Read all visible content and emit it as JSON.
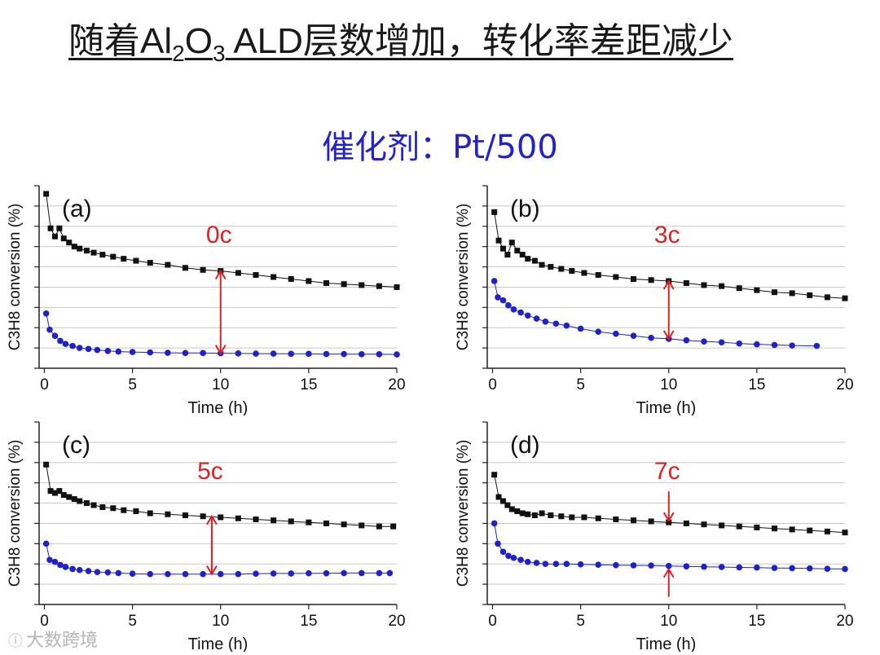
{
  "title": {
    "prefix": "随着Al",
    "sub1": "2",
    "mid": "O",
    "sub2": "3",
    "suffix": " ALD层数增加，转化率差距减少"
  },
  "subtitle": "催化剂：Pt/500",
  "watermark": {
    "icon": "ⓘ",
    "text": "大数跨境"
  },
  "colors": {
    "black_series": "#111111",
    "blue_series": "#1f22c8",
    "annotation": "#e02020",
    "grid": "#c8c8c8"
  },
  "chart_data": [
    {
      "type": "scatter",
      "panel_label": "(a)",
      "annotation": "0c",
      "xlabel": "Time (h)",
      "ylabel": "C3H8 conversion (%)",
      "xlim": [
        -0.3,
        20
      ],
      "xticks": [
        0,
        5,
        10,
        15,
        20
      ],
      "ylim": [
        0,
        9
      ],
      "series": [
        {
          "name": "black",
          "color": "#111111",
          "x": [
            0.1,
            0.35,
            0.6,
            0.85,
            1.1,
            1.4,
            1.7,
            2.0,
            2.4,
            2.8,
            3.3,
            3.9,
            4.5,
            5.2,
            6,
            7,
            8,
            9,
            10,
            11,
            12,
            13,
            14,
            15,
            16,
            17,
            18,
            19,
            20
          ],
          "y": [
            8.6,
            6.9,
            6.5,
            6.9,
            6.4,
            6.2,
            6.0,
            5.9,
            5.8,
            5.7,
            5.6,
            5.5,
            5.4,
            5.3,
            5.2,
            5.1,
            4.95,
            4.85,
            4.8,
            4.7,
            4.6,
            4.5,
            4.4,
            4.3,
            4.2,
            4.15,
            4.1,
            4.05,
            4.0
          ]
        },
        {
          "name": "blue",
          "color": "#1f22c8",
          "x": [
            0.1,
            0.3,
            0.6,
            0.9,
            1.2,
            1.6,
            2.0,
            2.5,
            3.0,
            3.6,
            4.2,
            5,
            6,
            7,
            8,
            9,
            10,
            11,
            12,
            13,
            14,
            15,
            16,
            17,
            18,
            19,
            20
          ],
          "y": [
            2.7,
            1.9,
            1.6,
            1.35,
            1.2,
            1.1,
            1.0,
            0.95,
            0.9,
            0.85,
            0.82,
            0.8,
            0.78,
            0.76,
            0.75,
            0.75,
            0.74,
            0.73,
            0.72,
            0.72,
            0.71,
            0.71,
            0.7,
            0.7,
            0.69,
            0.69,
            0.68
          ]
        }
      ],
      "arrow": {
        "x": 10,
        "y_top": 4.8,
        "y_bottom": 0.74,
        "style": "double"
      }
    },
    {
      "type": "scatter",
      "panel_label": "(b)",
      "annotation": "3c",
      "xlabel": "Time (h)",
      "ylabel": "C3H8 conversion (%)",
      "xlim": [
        -0.3,
        20
      ],
      "xticks": [
        0,
        5,
        10,
        15,
        20
      ],
      "ylim": [
        0,
        9
      ],
      "series": [
        {
          "name": "black",
          "color": "#111111",
          "x": [
            0.1,
            0.35,
            0.6,
            0.85,
            1.1,
            1.4,
            1.7,
            2.0,
            2.4,
            2.8,
            3.3,
            3.9,
            4.5,
            5.2,
            6,
            7,
            8,
            9,
            10,
            11,
            12,
            13,
            14,
            15,
            16,
            17,
            18,
            19,
            20
          ],
          "y": [
            7.7,
            6.3,
            5.9,
            5.6,
            6.2,
            5.8,
            5.6,
            5.4,
            5.3,
            5.1,
            5.0,
            4.9,
            4.8,
            4.7,
            4.6,
            4.5,
            4.4,
            4.35,
            4.3,
            4.2,
            4.1,
            4.05,
            3.95,
            3.85,
            3.75,
            3.7,
            3.6,
            3.5,
            3.45
          ]
        },
        {
          "name": "blue",
          "color": "#1f22c8",
          "x": [
            0.1,
            0.3,
            0.6,
            0.9,
            1.2,
            1.6,
            2.0,
            2.5,
            3.0,
            3.6,
            4.2,
            5,
            6,
            7,
            8,
            9,
            10,
            11,
            12,
            13,
            14,
            15,
            16,
            17,
            18.4
          ],
          "y": [
            4.3,
            3.5,
            3.35,
            3.1,
            2.9,
            2.75,
            2.6,
            2.45,
            2.3,
            2.2,
            2.1,
            1.95,
            1.8,
            1.7,
            1.6,
            1.5,
            1.45,
            1.38,
            1.32,
            1.28,
            1.22,
            1.18,
            1.15,
            1.12,
            1.1
          ]
        }
      ],
      "arrow": {
        "x": 10,
        "y_top": 4.3,
        "y_bottom": 1.45,
        "style": "double"
      }
    },
    {
      "type": "scatter",
      "panel_label": "(c)",
      "annotation": "5c",
      "xlabel": "Time (h)",
      "ylabel": "C3H8 conversion (%)",
      "xlim": [
        -0.3,
        20
      ],
      "xticks": [
        0,
        5,
        10,
        15,
        20
      ],
      "ylim": [
        0,
        9
      ],
      "series": [
        {
          "name": "black",
          "color": "#111111",
          "x": [
            0.1,
            0.35,
            0.6,
            0.85,
            1.1,
            1.4,
            1.7,
            2.0,
            2.4,
            2.8,
            3.3,
            3.9,
            4.5,
            5.2,
            6,
            7,
            8,
            9,
            10,
            11,
            12,
            13,
            14,
            15,
            16,
            17,
            18,
            19,
            19.8
          ],
          "y": [
            6.9,
            5.6,
            5.5,
            5.6,
            5.4,
            5.3,
            5.2,
            5.1,
            5.0,
            4.9,
            4.8,
            4.75,
            4.65,
            4.6,
            4.5,
            4.45,
            4.4,
            4.35,
            4.3,
            4.25,
            4.2,
            4.15,
            4.1,
            4.05,
            4.0,
            3.95,
            3.9,
            3.85,
            3.85
          ]
        },
        {
          "name": "blue",
          "color": "#1f22c8",
          "x": [
            0.1,
            0.3,
            0.6,
            0.9,
            1.2,
            1.6,
            2.0,
            2.5,
            3.0,
            3.6,
            4.2,
            5,
            6,
            7,
            8,
            9,
            10,
            11,
            12,
            13,
            14,
            15,
            16,
            17,
            18,
            19,
            19.6
          ],
          "y": [
            3.0,
            2.2,
            2.1,
            1.95,
            1.85,
            1.75,
            1.7,
            1.65,
            1.6,
            1.58,
            1.55,
            1.52,
            1.5,
            1.5,
            1.5,
            1.5,
            1.5,
            1.5,
            1.52,
            1.53,
            1.53,
            1.54,
            1.54,
            1.55,
            1.55,
            1.55,
            1.55
          ]
        }
      ],
      "arrow": {
        "x": 9.5,
        "y_top": 4.35,
        "y_bottom": 1.5,
        "style": "double"
      }
    },
    {
      "type": "scatter",
      "panel_label": "(d)",
      "annotation": "7c",
      "xlabel": "Time (h)",
      "ylabel": "C3H8 conversion (%)",
      "xlim": [
        -0.3,
        20
      ],
      "xticks": [
        0,
        5,
        10,
        15,
        20
      ],
      "ylim": [
        0,
        9
      ],
      "series": [
        {
          "name": "black",
          "color": "#111111",
          "x": [
            0.1,
            0.35,
            0.6,
            0.85,
            1.1,
            1.4,
            1.7,
            2.0,
            2.4,
            2.8,
            3.3,
            3.9,
            4.5,
            5.2,
            6,
            7,
            8,
            9,
            10,
            11,
            12,
            13,
            14,
            15,
            16,
            17,
            18,
            19,
            20
          ],
          "y": [
            6.4,
            5.3,
            5.1,
            4.9,
            4.7,
            4.6,
            4.5,
            4.45,
            4.4,
            4.5,
            4.4,
            4.35,
            4.3,
            4.3,
            4.25,
            4.2,
            4.15,
            4.1,
            4.05,
            4.0,
            3.95,
            3.9,
            3.85,
            3.8,
            3.75,
            3.7,
            3.65,
            3.6,
            3.55
          ]
        },
        {
          "name": "blue",
          "color": "#1f22c8",
          "x": [
            0.1,
            0.3,
            0.6,
            0.9,
            1.2,
            1.6,
            2.0,
            2.5,
            3.0,
            3.6,
            4.2,
            5,
            6,
            7,
            8,
            9,
            10,
            11,
            12,
            13,
            14,
            15,
            16,
            17,
            18,
            19,
            20
          ],
          "y": [
            4.0,
            3.0,
            2.6,
            2.4,
            2.3,
            2.2,
            2.1,
            2.05,
            2.0,
            2.0,
            2.0,
            1.98,
            1.96,
            1.94,
            1.93,
            1.92,
            1.9,
            1.88,
            1.86,
            1.85,
            1.83,
            1.82,
            1.8,
            1.79,
            1.78,
            1.76,
            1.75
          ]
        }
      ],
      "arrow": {
        "x": 10,
        "y_top": 4.05,
        "y_bottom": 1.9,
        "style": "pinch"
      }
    }
  ]
}
